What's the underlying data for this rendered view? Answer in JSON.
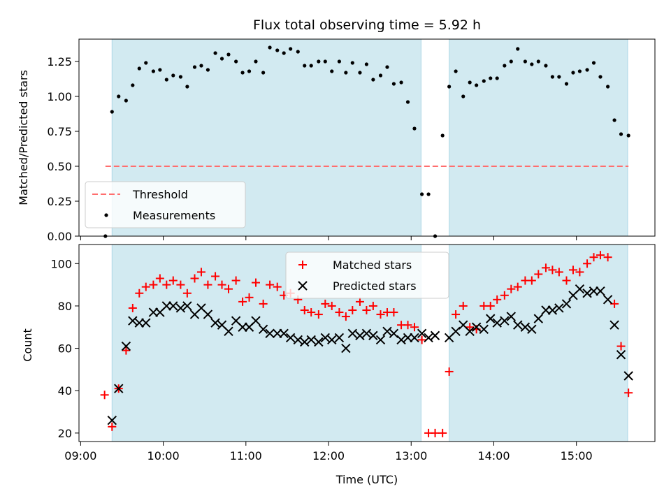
{
  "chart_data": {
    "title": "Flux total observing time = 5.92 h",
    "xlabel": "Time (UTC)",
    "x_ticks": [
      "09:00",
      "10:00",
      "11:00",
      "12:00",
      "13:00",
      "14:00",
      "15:00"
    ],
    "x_tick_hours": [
      9,
      10,
      11,
      12,
      13,
      14,
      15
    ],
    "xlim_hours": [
      8.98,
      15.95
    ],
    "shaded_intervals_hours": [
      [
        9.38,
        13.12
      ],
      [
        13.46,
        15.62
      ]
    ],
    "colors": {
      "shade": "#add8e6",
      "threshold": "#ff6e6e",
      "measurements": "#000000",
      "matched": "#ff0000",
      "predicted": "#000000"
    },
    "panels": [
      {
        "type": "scatter",
        "ylabel": "Matched/Predicted stars",
        "ylim": [
          0,
          1.41
        ],
        "y_ticks": [
          "0.00",
          "0.25",
          "0.50",
          "0.75",
          "1.00",
          "1.25"
        ],
        "y_tick_values": [
          0,
          0.25,
          0.5,
          0.75,
          1.0,
          1.25
        ],
        "threshold": {
          "label": "Threshold",
          "value": 0.5,
          "x_range_hours": [
            9.3,
            15.63
          ]
        },
        "legend": [
          "Threshold",
          "Measurements"
        ],
        "legend_position": "lower-left",
        "series": [
          {
            "name": "Measurements",
            "marker": "dot",
            "x_hours": [
              9.3,
              9.38,
              9.46,
              9.55,
              9.63,
              9.71,
              9.79,
              9.88,
              9.96,
              10.04,
              10.12,
              10.21,
              10.29,
              10.38,
              10.46,
              10.54,
              10.63,
              10.71,
              10.79,
              10.88,
              10.96,
              11.04,
              11.12,
              11.21,
              11.29,
              11.38,
              11.46,
              11.54,
              11.63,
              11.71,
              11.79,
              11.88,
              11.96,
              12.04,
              12.13,
              12.21,
              12.29,
              12.38,
              12.46,
              12.54,
              12.63,
              12.71,
              12.79,
              12.88,
              12.96,
              13.04,
              13.13,
              13.21,
              13.29,
              13.38,
              13.46,
              13.54,
              13.63,
              13.71,
              13.79,
              13.88,
              13.96,
              14.04,
              14.13,
              14.21,
              14.29,
              14.38,
              14.46,
              14.54,
              14.63,
              14.71,
              14.79,
              14.88,
              14.96,
              15.04,
              15.13,
              15.21,
              15.29,
              15.38,
              15.46,
              15.54,
              15.63
            ],
            "values": [
              0.0,
              0.89,
              1.0,
              0.97,
              1.08,
              1.2,
              1.24,
              1.18,
              1.19,
              1.12,
              1.15,
              1.14,
              1.07,
              1.21,
              1.22,
              1.19,
              1.31,
              1.27,
              1.3,
              1.25,
              1.17,
              1.18,
              1.25,
              1.17,
              1.35,
              1.33,
              1.31,
              1.34,
              1.32,
              1.22,
              1.22,
              1.25,
              1.25,
              1.18,
              1.25,
              1.17,
              1.24,
              1.17,
              1.23,
              1.12,
              1.15,
              1.21,
              1.09,
              1.1,
              0.96,
              0.77,
              0.3,
              0.3,
              0.0,
              0.72,
              1.07,
              1.18,
              1.0,
              1.1,
              1.08,
              1.11,
              1.13,
              1.13,
              1.22,
              1.25,
              1.34,
              1.25,
              1.23,
              1.25,
              1.22,
              1.14,
              1.14,
              1.09,
              1.17,
              1.18,
              1.19,
              1.24,
              1.14,
              1.07,
              0.83,
              0.73,
              0.72
            ]
          }
        ]
      },
      {
        "type": "scatter",
        "ylabel": "Count",
        "ylim": [
          16,
          109
        ],
        "y_ticks": [
          "20",
          "40",
          "60",
          "80",
          "100"
        ],
        "y_tick_values": [
          20,
          40,
          60,
          80,
          100
        ],
        "legend": [
          "Matched stars",
          "Predicted stars"
        ],
        "legend_position": "upper-center",
        "series": [
          {
            "name": "Matched stars",
            "marker": "plus",
            "x_hours": [
              9.29,
              9.38,
              9.46,
              9.55,
              9.63,
              9.71,
              9.79,
              9.88,
              9.96,
              10.04,
              10.12,
              10.21,
              10.29,
              10.38,
              10.46,
              10.54,
              10.63,
              10.71,
              10.79,
              10.88,
              10.96,
              11.04,
              11.12,
              11.21,
              11.29,
              11.38,
              11.46,
              11.54,
              11.63,
              11.71,
              11.79,
              11.88,
              11.96,
              12.04,
              12.13,
              12.21,
              12.29,
              12.38,
              12.46,
              12.54,
              12.63,
              12.71,
              12.79,
              12.88,
              12.96,
              13.04,
              13.13,
              13.21,
              13.29,
              13.38,
              13.46,
              13.54,
              13.63,
              13.71,
              13.79,
              13.88,
              13.96,
              14.04,
              14.13,
              14.21,
              14.29,
              14.38,
              14.46,
              14.54,
              14.63,
              14.71,
              14.79,
              14.88,
              14.96,
              15.04,
              15.13,
              15.21,
              15.29,
              15.38,
              15.46,
              15.54,
              15.63
            ],
            "values": [
              38,
              23,
              41,
              59,
              79,
              86,
              89,
              90,
              93,
              90,
              92,
              90,
              86,
              93,
              96,
              90,
              94,
              90,
              88,
              92,
              82,
              84,
              91,
              81,
              90,
              89,
              85,
              86,
              83,
              78,
              77,
              76,
              81,
              80,
              77,
              75,
              78,
              82,
              78,
              80,
              76,
              77,
              77,
              71,
              71,
              70,
              64,
              20,
              20,
              20,
              49,
              76,
              80,
              70,
              69,
              80,
              80,
              83,
              85,
              88,
              89,
              92,
              92,
              95,
              98,
              97,
              96,
              92,
              97,
              96,
              100,
              103,
              104,
              103,
              81,
              61,
              39
            ]
          },
          {
            "name": "Predicted stars",
            "marker": "x",
            "x_hours": [
              9.38,
              9.46,
              9.55,
              9.63,
              9.71,
              9.79,
              9.88,
              9.96,
              10.04,
              10.12,
              10.21,
              10.29,
              10.38,
              10.46,
              10.54,
              10.63,
              10.71,
              10.79,
              10.88,
              10.96,
              11.04,
              11.12,
              11.21,
              11.29,
              11.38,
              11.46,
              11.54,
              11.63,
              11.71,
              11.79,
              11.88,
              11.96,
              12.04,
              12.13,
              12.21,
              12.29,
              12.38,
              12.46,
              12.54,
              12.63,
              12.71,
              12.79,
              12.88,
              12.96,
              13.04,
              13.13,
              13.21,
              13.29,
              13.46,
              13.54,
              13.63,
              13.71,
              13.79,
              13.88,
              13.96,
              14.04,
              14.13,
              14.21,
              14.29,
              14.38,
              14.46,
              14.54,
              14.63,
              14.71,
              14.79,
              14.88,
              14.96,
              15.04,
              15.13,
              15.21,
              15.29,
              15.38,
              15.46,
              15.54,
              15.63
            ],
            "values": [
              26,
              41,
              61,
              73,
              72,
              72,
              77,
              77,
              80,
              80,
              79,
              80,
              76,
              79,
              76,
              72,
              71,
              68,
              73,
              70,
              70,
              73,
              69,
              67,
              67,
              67,
              65,
              64,
              63,
              64,
              63,
              65,
              64,
              65,
              60,
              67,
              66,
              67,
              66,
              64,
              68,
              67,
              64,
              65,
              65,
              67,
              65,
              66,
              65,
              68,
              71,
              68,
              70,
              69,
              74,
              72,
              73,
              75,
              71,
              70,
              69,
              74,
              78,
              78,
              79,
              81,
              85,
              88,
              86,
              87,
              87,
              83,
              71,
              57,
              47
            ]
          }
        ]
      }
    ]
  }
}
